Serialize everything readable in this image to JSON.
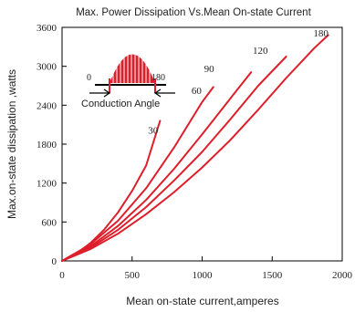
{
  "chart_data": {
    "type": "line",
    "title": "Max. Power Dissipation Vs.Mean On-state Current",
    "xlabel": "Mean on-state current,amperes",
    "ylabel": "Max.on-state dissipation ,watts",
    "xlim": [
      0,
      2000
    ],
    "ylim": [
      0,
      3600
    ],
    "xticks": [
      0,
      500,
      1000,
      1500,
      2000
    ],
    "yticks": [
      0,
      600,
      1200,
      1800,
      2400,
      3000,
      3600
    ],
    "grid": false,
    "line_color": "#dd1e2b",
    "series": [
      {
        "name": "30",
        "x": [
          0,
          100,
          200,
          300,
          400,
          500,
          600,
          700
        ],
        "y": [
          0,
          110,
          270,
          480,
          750,
          1080,
          1470,
          2160
        ]
      },
      {
        "name": "60",
        "x": [
          0,
          200,
          400,
          600,
          800,
          1000,
          1080
        ],
        "y": [
          0,
          250,
          620,
          1120,
          1750,
          2450,
          2680
        ]
      },
      {
        "name": "90",
        "x": [
          0,
          200,
          400,
          600,
          800,
          1000,
          1200,
          1350
        ],
        "y": [
          0,
          220,
          540,
          940,
          1420,
          1950,
          2500,
          2910
        ]
      },
      {
        "name": "120",
        "x": [
          0,
          200,
          400,
          600,
          800,
          1000,
          1200,
          1400,
          1600
        ],
        "y": [
          0,
          200,
          480,
          830,
          1240,
          1680,
          2180,
          2700,
          3150
        ]
      },
      {
        "name": "180",
        "x": [
          0,
          200,
          400,
          600,
          800,
          1000,
          1200,
          1400,
          1600,
          1800,
          1900
        ],
        "y": [
          0,
          180,
          420,
          720,
          1060,
          1440,
          1860,
          2330,
          2820,
          3280,
          3480
        ]
      }
    ],
    "series_label_positions": [
      {
        "text": "30",
        "x": 650,
        "y": 1960
      },
      {
        "text": "60",
        "x": 960,
        "y": 2570
      },
      {
        "text": "90",
        "x": 1050,
        "y": 2910
      },
      {
        "text": "120",
        "x": 1415,
        "y": 3190
      },
      {
        "text": "180",
        "x": 1848,
        "y": 3460
      }
    ],
    "inset": {
      "label": "Conduction Angle",
      "angle_start": "0",
      "angle_end": "180"
    }
  }
}
